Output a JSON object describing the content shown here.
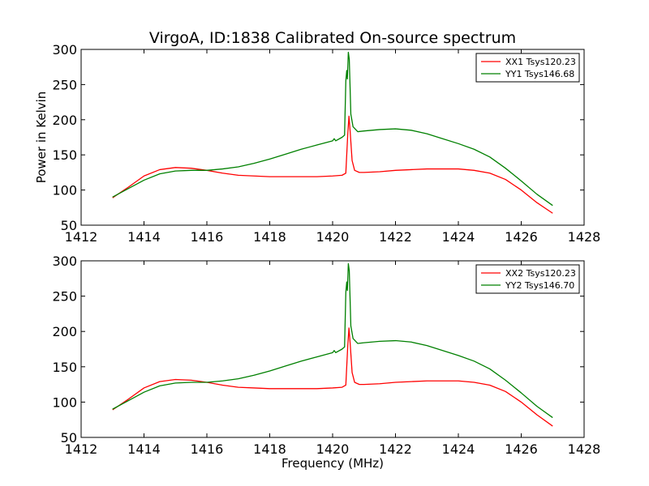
{
  "figure": {
    "title": "VirgoA, ID:1838 Calibrated On-source spectrum"
  },
  "chart_data": [
    {
      "type": "line",
      "title": "VirgoA, ID:1838 Calibrated On-source spectrum",
      "xlabel": "",
      "ylabel": "Power in Kelvin",
      "xlim": [
        1412,
        1428
      ],
      "ylim": [
        50,
        300
      ],
      "xticks": [
        "1412",
        "1414",
        "1416",
        "1418",
        "1420",
        "1422",
        "1424",
        "1426",
        "1428"
      ],
      "yticks": [
        "50",
        "100",
        "150",
        "200",
        "250",
        "300"
      ],
      "grid": false,
      "legend_position": "top-right",
      "series": [
        {
          "name": "XX1 Tsys120.23",
          "color": "#ff0000",
          "points": [
            [
              1413.0,
              89
            ],
            [
              1413.5,
              104
            ],
            [
              1414.0,
              120
            ],
            [
              1414.5,
              129
            ],
            [
              1415.0,
              132
            ],
            [
              1415.5,
              131
            ],
            [
              1416.0,
              128
            ],
            [
              1416.5,
              124
            ],
            [
              1417.0,
              121
            ],
            [
              1417.5,
              120
            ],
            [
              1418.0,
              119
            ],
            [
              1418.5,
              119
            ],
            [
              1419.0,
              119
            ],
            [
              1419.5,
              119
            ],
            [
              1420.0,
              120
            ],
            [
              1420.3,
              121
            ],
            [
              1420.42,
              124
            ],
            [
              1420.48,
              178
            ],
            [
              1420.52,
              205
            ],
            [
              1420.56,
              182
            ],
            [
              1420.62,
              142
            ],
            [
              1420.7,
              128
            ],
            [
              1420.85,
              125
            ],
            [
              1421.0,
              125
            ],
            [
              1421.5,
              126
            ],
            [
              1422.0,
              128
            ],
            [
              1422.5,
              129
            ],
            [
              1423.0,
              130
            ],
            [
              1423.5,
              130
            ],
            [
              1424.0,
              130
            ],
            [
              1424.5,
              128
            ],
            [
              1425.0,
              124
            ],
            [
              1425.5,
              115
            ],
            [
              1426.0,
              100
            ],
            [
              1426.5,
              82
            ],
            [
              1427.0,
              67
            ]
          ]
        },
        {
          "name": "YY1 Tsys146.68",
          "color": "#008000",
          "points": [
            [
              1413.0,
              90
            ],
            [
              1413.5,
              102
            ],
            [
              1414.0,
              114
            ],
            [
              1414.5,
              123
            ],
            [
              1415.0,
              127
            ],
            [
              1415.5,
              128
            ],
            [
              1416.0,
              128
            ],
            [
              1416.5,
              130
            ],
            [
              1417.0,
              133
            ],
            [
              1417.5,
              138
            ],
            [
              1418.0,
              144
            ],
            [
              1418.5,
              151
            ],
            [
              1419.0,
              158
            ],
            [
              1419.5,
              164
            ],
            [
              1420.0,
              170
            ],
            [
              1420.05,
              173
            ],
            [
              1420.1,
              170
            ],
            [
              1420.3,
              175
            ],
            [
              1420.38,
              178
            ],
            [
              1420.42,
              255
            ],
            [
              1420.45,
              270
            ],
            [
              1420.47,
              258
            ],
            [
              1420.5,
              296
            ],
            [
              1420.53,
              286
            ],
            [
              1420.58,
              208
            ],
            [
              1420.65,
              190
            ],
            [
              1420.8,
              183
            ],
            [
              1421.0,
              184
            ],
            [
              1421.5,
              186
            ],
            [
              1422.0,
              187
            ],
            [
              1422.5,
              185
            ],
            [
              1423.0,
              180
            ],
            [
              1423.5,
              173
            ],
            [
              1424.0,
              166
            ],
            [
              1424.5,
              158
            ],
            [
              1425.0,
              147
            ],
            [
              1425.5,
              131
            ],
            [
              1426.0,
              113
            ],
            [
              1426.5,
              94
            ],
            [
              1427.0,
              78
            ]
          ]
        }
      ]
    },
    {
      "type": "line",
      "title": "",
      "xlabel": "Frequency (MHz)",
      "ylabel": "",
      "xlim": [
        1412,
        1428
      ],
      "ylim": [
        50,
        300
      ],
      "xticks": [
        "1412",
        "1414",
        "1416",
        "1418",
        "1420",
        "1422",
        "1424",
        "1426",
        "1428"
      ],
      "yticks": [
        "50",
        "100",
        "150",
        "200",
        "250",
        "300"
      ],
      "grid": false,
      "legend_position": "top-right",
      "series": [
        {
          "name": "XX2 Tsys120.23",
          "color": "#ff0000",
          "points": [
            [
              1413.0,
              89
            ],
            [
              1413.5,
              104
            ],
            [
              1414.0,
              120
            ],
            [
              1414.5,
              129
            ],
            [
              1415.0,
              132
            ],
            [
              1415.5,
              131
            ],
            [
              1416.0,
              128
            ],
            [
              1416.5,
              124
            ],
            [
              1417.0,
              121
            ],
            [
              1417.5,
              120
            ],
            [
              1418.0,
              119
            ],
            [
              1418.5,
              119
            ],
            [
              1419.0,
              119
            ],
            [
              1419.5,
              119
            ],
            [
              1420.0,
              120
            ],
            [
              1420.3,
              121
            ],
            [
              1420.42,
              124
            ],
            [
              1420.48,
              178
            ],
            [
              1420.52,
              205
            ],
            [
              1420.56,
              182
            ],
            [
              1420.62,
              142
            ],
            [
              1420.7,
              128
            ],
            [
              1420.85,
              125
            ],
            [
              1421.0,
              125
            ],
            [
              1421.5,
              126
            ],
            [
              1422.0,
              128
            ],
            [
              1422.5,
              129
            ],
            [
              1423.0,
              130
            ],
            [
              1423.5,
              130
            ],
            [
              1424.0,
              130
            ],
            [
              1424.5,
              128
            ],
            [
              1425.0,
              124
            ],
            [
              1425.5,
              115
            ],
            [
              1426.0,
              100
            ],
            [
              1426.5,
              82
            ],
            [
              1427.0,
              66
            ]
          ]
        },
        {
          "name": "YY2 Tsys146.70",
          "color": "#008000",
          "points": [
            [
              1413.0,
              90
            ],
            [
              1413.5,
              102
            ],
            [
              1414.0,
              114
            ],
            [
              1414.5,
              123
            ],
            [
              1415.0,
              127
            ],
            [
              1415.5,
              128
            ],
            [
              1416.0,
              128
            ],
            [
              1416.5,
              130
            ],
            [
              1417.0,
              133
            ],
            [
              1417.5,
              138
            ],
            [
              1418.0,
              144
            ],
            [
              1418.5,
              151
            ],
            [
              1419.0,
              158
            ],
            [
              1419.5,
              164
            ],
            [
              1420.0,
              170
            ],
            [
              1420.05,
              173
            ],
            [
              1420.1,
              170
            ],
            [
              1420.3,
              175
            ],
            [
              1420.38,
              178
            ],
            [
              1420.42,
              255
            ],
            [
              1420.45,
              270
            ],
            [
              1420.47,
              258
            ],
            [
              1420.5,
              296
            ],
            [
              1420.53,
              286
            ],
            [
              1420.58,
              208
            ],
            [
              1420.65,
              190
            ],
            [
              1420.8,
              183
            ],
            [
              1421.0,
              184
            ],
            [
              1421.5,
              186
            ],
            [
              1422.0,
              187
            ],
            [
              1422.5,
              185
            ],
            [
              1423.0,
              180
            ],
            [
              1423.5,
              173
            ],
            [
              1424.0,
              166
            ],
            [
              1424.5,
              158
            ],
            [
              1425.0,
              147
            ],
            [
              1425.5,
              131
            ],
            [
              1426.0,
              113
            ],
            [
              1426.5,
              94
            ],
            [
              1427.0,
              78
            ]
          ]
        }
      ]
    }
  ]
}
